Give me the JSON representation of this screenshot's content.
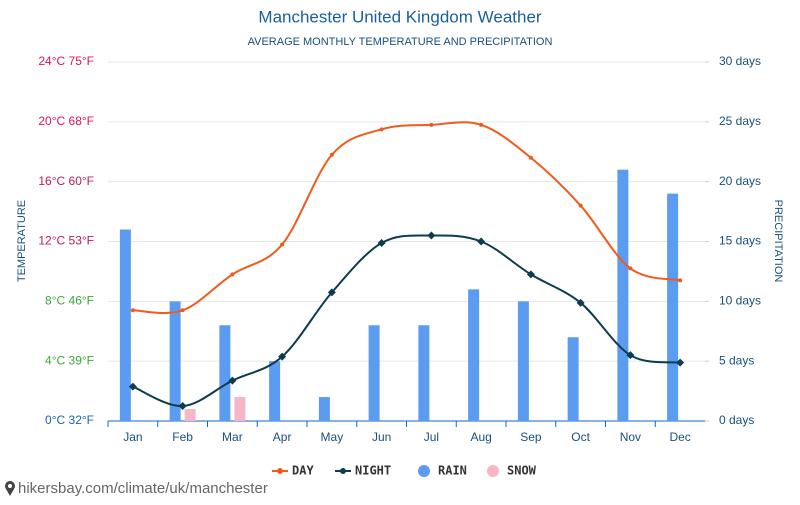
{
  "chart_data": {
    "type": "combo",
    "title": "Manchester United Kingdom Weather",
    "subtitle": "AVERAGE MONTHLY TEMPERATURE AND PRECIPITATION",
    "y_label": "TEMPERATURE",
    "y2_label": "PRECIPITATION",
    "categories": [
      "Jan",
      "Feb",
      "Mar",
      "Apr",
      "May",
      "Jun",
      "Jul",
      "Aug",
      "Sep",
      "Oct",
      "Nov",
      "Dec"
    ],
    "series": [
      {
        "name": "DAY",
        "kind": "line",
        "color": "#f05a1a",
        "values": [
          7.4,
          7.4,
          9.8,
          11.8,
          17.8,
          19.5,
          19.8,
          19.8,
          17.6,
          14.4,
          10.2,
          9.4
        ]
      },
      {
        "name": "NIGHT",
        "kind": "line",
        "color": "#0d3b4f",
        "values": [
          2.3,
          1.0,
          2.7,
          4.3,
          8.6,
          11.9,
          12.4,
          12.0,
          9.8,
          7.9,
          4.4,
          3.9
        ]
      },
      {
        "name": "RAIN",
        "kind": "bar",
        "axis": "y2",
        "color": "#5b9cf0",
        "values": [
          16,
          10,
          8,
          5,
          2,
          8,
          8,
          11,
          10,
          7,
          21,
          19
        ]
      },
      {
        "name": "SNOW",
        "kind": "bar",
        "axis": "y2",
        "color": "#f7b6c8",
        "values": [
          0,
          1,
          2,
          0,
          0,
          0,
          0,
          0,
          0,
          0,
          0,
          0
        ]
      }
    ],
    "ylim": [
      0,
      24
    ],
    "yticks": [
      {
        "value": 0,
        "label": "0°C 32°F"
      },
      {
        "value": 4,
        "label": "4°C 39°F"
      },
      {
        "value": 8,
        "label": "8°C 46°F"
      },
      {
        "value": 12,
        "label": "12°C 53°F"
      },
      {
        "value": 16,
        "label": "16°C 60°F"
      },
      {
        "value": 20,
        "label": "20°C 68°F"
      },
      {
        "value": 24,
        "label": "24°C 75°F"
      }
    ],
    "ytick_colors": [
      "#1565c0",
      "#3aa83a",
      "#3aa83a",
      "#c2185b",
      "#c2185b",
      "#e0115f",
      "#e0115f"
    ],
    "y2lim": [
      0,
      30
    ],
    "y2ticks": [
      {
        "value": 0,
        "label": "0 days"
      },
      {
        "value": 5,
        "label": "5 days"
      },
      {
        "value": 10,
        "label": "10 days"
      },
      {
        "value": 15,
        "label": "15 days"
      },
      {
        "value": 20,
        "label": "20 days"
      },
      {
        "value": 25,
        "label": "25 days"
      },
      {
        "value": 30,
        "label": "30 days"
      }
    ],
    "grid": true,
    "legend": "bottom",
    "source": "hikersbay.com/climate/uk/manchester"
  }
}
